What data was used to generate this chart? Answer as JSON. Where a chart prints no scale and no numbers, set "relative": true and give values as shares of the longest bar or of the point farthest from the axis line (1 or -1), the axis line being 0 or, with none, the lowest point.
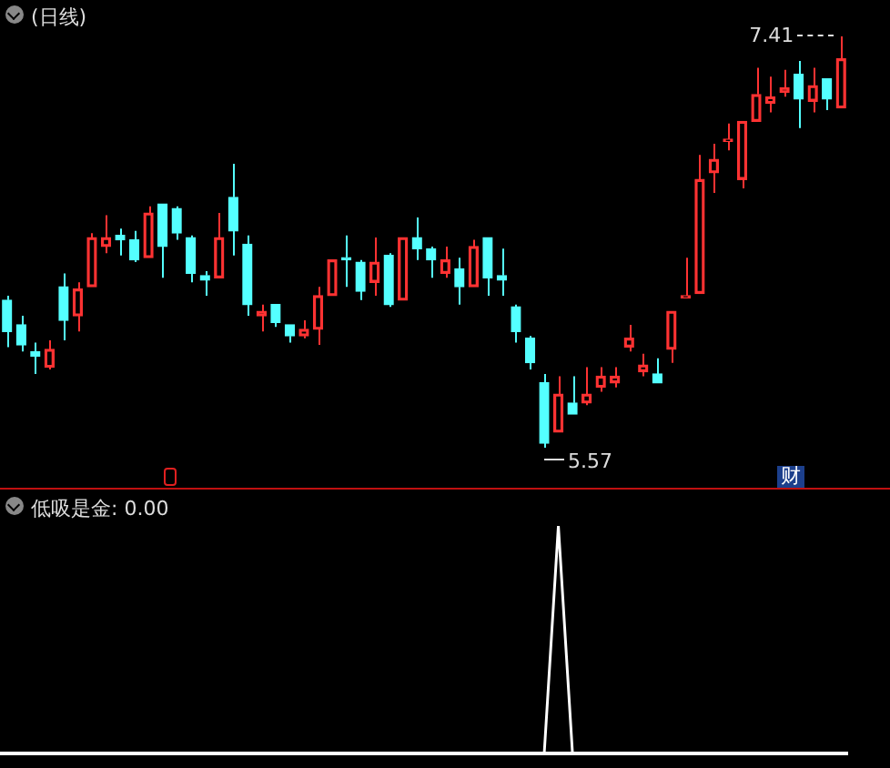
{
  "chart_data": [
    {
      "type": "candlestick",
      "title": "(日线)",
      "categories": [
        null,
        null,
        null,
        null,
        null,
        null,
        null,
        null,
        null,
        null,
        null,
        null,
        null,
        null,
        null,
        null,
        null,
        null,
        null,
        null,
        null,
        null,
        null,
        null,
        null,
        null,
        null,
        null,
        null,
        null,
        null,
        null,
        null,
        null,
        null,
        null,
        null,
        null,
        null,
        null,
        null,
        null,
        null,
        null,
        null,
        null,
        null,
        null,
        null,
        null,
        null,
        null,
        null,
        null,
        null,
        null,
        null,
        null,
        null,
        null
      ],
      "ohlc": [
        [
          6.23,
          6.25,
          6.02,
          6.09
        ],
        [
          6.12,
          6.16,
          6.0,
          6.03
        ],
        [
          6.0,
          6.04,
          5.9,
          5.98
        ],
        [
          5.93,
          6.05,
          5.92,
          6.01
        ],
        [
          6.29,
          6.35,
          6.05,
          6.14
        ],
        [
          6.16,
          6.31,
          6.09,
          6.28
        ],
        [
          6.29,
          6.53,
          6.29,
          6.51
        ],
        [
          6.47,
          6.61,
          6.44,
          6.51
        ],
        [
          6.52,
          6.55,
          6.43,
          6.5
        ],
        [
          6.5,
          6.54,
          6.4,
          6.41
        ],
        [
          6.42,
          6.65,
          6.42,
          6.62
        ],
        [
          6.66,
          6.66,
          6.33,
          6.47
        ],
        [
          6.64,
          6.65,
          6.5,
          6.53
        ],
        [
          6.51,
          6.52,
          6.31,
          6.35
        ],
        [
          6.34,
          6.36,
          6.25,
          6.32
        ],
        [
          6.33,
          6.62,
          6.33,
          6.51
        ],
        [
          6.69,
          6.84,
          6.43,
          6.54
        ],
        [
          6.48,
          6.52,
          6.16,
          6.21
        ],
        [
          6.16,
          6.21,
          6.09,
          6.18
        ],
        [
          6.21,
          6.21,
          6.11,
          6.13
        ],
        [
          6.12,
          6.12,
          6.04,
          6.07
        ],
        [
          6.07,
          6.14,
          6.06,
          6.1
        ],
        [
          6.1,
          6.29,
          6.03,
          6.25
        ],
        [
          6.25,
          6.41,
          6.25,
          6.41
        ],
        [
          6.42,
          6.52,
          6.29,
          6.41
        ],
        [
          6.4,
          6.41,
          6.23,
          6.27
        ],
        [
          6.31,
          6.51,
          6.25,
          6.4
        ],
        [
          6.43,
          6.44,
          6.2,
          6.21
        ],
        [
          6.23,
          6.51,
          6.23,
          6.51
        ],
        [
          6.51,
          6.6,
          6.41,
          6.46
        ],
        [
          6.46,
          6.47,
          6.33,
          6.41
        ],
        [
          6.35,
          6.47,
          6.33,
          6.41
        ],
        [
          6.37,
          6.42,
          6.21,
          6.29
        ],
        [
          6.29,
          6.5,
          6.29,
          6.47
        ],
        [
          6.51,
          6.51,
          6.25,
          6.33
        ],
        [
          6.34,
          6.46,
          6.25,
          6.32
        ],
        [
          6.2,
          6.21,
          6.04,
          6.09
        ],
        [
          6.06,
          6.07,
          5.92,
          5.95
        ],
        [
          5.86,
          5.9,
          5.57,
          5.59
        ],
        [
          5.64,
          5.89,
          5.64,
          5.81
        ],
        [
          5.77,
          5.89,
          5.72,
          5.72
        ],
        [
          5.77,
          5.93,
          5.76,
          5.81
        ],
        [
          5.84,
          5.93,
          5.82,
          5.89
        ],
        [
          5.86,
          5.93,
          5.84,
          5.89
        ],
        [
          6.02,
          6.12,
          6.0,
          6.06
        ],
        [
          5.91,
          5.99,
          5.89,
          5.94
        ],
        [
          5.9,
          5.97,
          5.86,
          5.86
        ],
        [
          6.01,
          6.18,
          5.95,
          6.18
        ],
        [
          6.24,
          6.42,
          6.24,
          6.25
        ],
        [
          6.26,
          6.88,
          6.26,
          6.77
        ],
        [
          6.8,
          6.93,
          6.71,
          6.86
        ],
        [
          6.94,
          7.02,
          6.9,
          6.95
        ],
        [
          6.77,
          7.03,
          6.73,
          7.03
        ],
        [
          7.03,
          7.27,
          7.03,
          7.15
        ],
        [
          7.11,
          7.23,
          7.07,
          7.14
        ],
        [
          7.16,
          7.26,
          7.14,
          7.18
        ],
        [
          7.24,
          7.3,
          7.0,
          7.13
        ],
        [
          7.12,
          7.27,
          7.07,
          7.19
        ],
        [
          7.22,
          7.22,
          7.08,
          7.13
        ],
        [
          7.09,
          7.41,
          7.09,
          7.31
        ]
      ],
      "colors": [
        "#54ffff",
        "#54ffff",
        "#54ffff",
        "#ff3232",
        "#54ffff",
        "#ff3232",
        "#ff3232",
        "#ff3232",
        "#54ffff",
        "#54ffff",
        "#ff3232",
        "#54ffff",
        "#54ffff",
        "#54ffff",
        "#54ffff",
        "#ff3232",
        "#54ffff",
        "#54ffff",
        "#ff3232",
        "#54ffff",
        "#54ffff",
        "#ff3232",
        "#ff3232",
        "#ff3232",
        "#54ffff",
        "#54ffff",
        "#ff3232",
        "#54ffff",
        "#ff3232",
        "#54ffff",
        "#54ffff",
        "#ff3232",
        "#54ffff",
        "#ff3232",
        "#54ffff",
        "#54ffff",
        "#54ffff",
        "#54ffff",
        "#54ffff",
        "#ff3232",
        "#54ffff",
        "#ff3232",
        "#ff3232",
        "#ff3232",
        "#ff3232",
        "#ff3232",
        "#54ffff",
        "#ff3232",
        "#ff3232",
        "#ff3232",
        "#ff3232",
        "#ff3232",
        "#ff3232",
        "#ff3232",
        "#ff3232",
        "#ff3232",
        "#54ffff",
        "#ff3232",
        "#54ffff",
        "#ff3232"
      ],
      "annotations": [
        "7.41",
        "5.57",
        "财"
      ]
    },
    {
      "type": "line",
      "title": "低吸是金: 0.00",
      "relative": true,
      "categories": [
        null,
        null,
        null,
        null,
        null,
        null,
        null,
        null,
        null,
        null,
        null,
        null,
        null,
        null,
        null,
        null,
        null,
        null,
        null,
        null,
        null,
        null,
        null,
        null,
        null,
        null,
        null,
        null,
        null,
        null,
        null,
        null,
        null,
        null,
        null,
        null,
        null,
        null,
        null,
        null,
        null,
        null,
        null,
        null,
        null,
        null,
        null,
        null,
        null,
        null,
        null,
        null,
        null,
        null,
        null,
        null,
        null,
        null,
        null,
        null
      ],
      "series": [
        {
          "color": "#ffffff",
          "values": [
            0,
            0,
            0,
            0,
            0,
            0,
            0,
            0,
            0,
            0,
            0,
            0,
            0,
            0,
            0,
            0,
            0,
            0,
            0,
            0,
            0,
            0,
            0,
            0,
            0,
            0,
            0,
            0,
            0,
            0,
            0,
            0,
            0,
            0,
            0,
            0,
            0,
            0,
            0,
            1,
            0,
            0,
            0,
            0,
            0,
            0,
            0,
            0,
            0,
            0,
            0,
            0,
            0,
            0,
            0,
            0,
            0,
            0,
            0,
            0
          ]
        }
      ]
    }
  ]
}
